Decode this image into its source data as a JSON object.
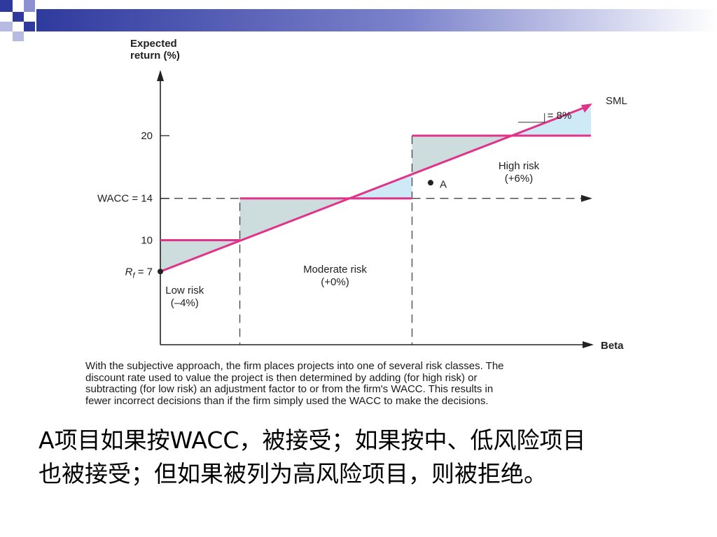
{
  "slide": {
    "header_band_colors": [
      "#2f3a9e",
      "#9aa0d8"
    ],
    "note_lines": [
      "A项目如果按WACC，被接受；如果按中、低风险项目",
      "也被接受；但如果被列为高风险项目，则被拒绝。"
    ]
  },
  "caption": {
    "lines": [
      "With the subjective approach, the firm places projects into one of several risk classes. The",
      "discount rate used to value the project is then determined by adding (for high risk) or",
      "subtracting (for low risk) an adjustment factor to or from the firm's WACC.  This results in",
      "fewer incorrect decisions than if the firm simply used the WACC to make the decisions."
    ]
  },
  "chart_data": {
    "type": "line",
    "ylabel": [
      "Expected",
      "return (%)"
    ],
    "xlabel": "Beta",
    "y_ticks": [
      {
        "value": 20,
        "label": "20"
      },
      {
        "value": 14,
        "label": "WACC = 14"
      },
      {
        "value": 10,
        "label": "10"
      }
    ],
    "rf": {
      "value": 7,
      "label_main": "R",
      "label_sub": "f",
      "label_rest": " = 7"
    },
    "sml": {
      "name": "SML",
      "x": [
        0,
        3.25
      ],
      "y": [
        7,
        23
      ]
    },
    "steps": [
      {
        "x": [
          0,
          0.6
        ],
        "y": 10
      },
      {
        "x": [
          0.6,
          1.9
        ],
        "y": 14
      },
      {
        "x": [
          1.9,
          3.25
        ],
        "y": 20
      }
    ],
    "wacc_line": 14,
    "class_boundaries": [
      0.6,
      1.9
    ],
    "regions": [
      {
        "name": "Low risk",
        "sub": "(–4%)"
      },
      {
        "name": "Moderate risk",
        "sub": "(+0%)"
      },
      {
        "name": "High risk",
        "sub": "(+6%)"
      }
    ],
    "project_a": {
      "label": "A",
      "x": 1.95,
      "y": 15.5
    },
    "annotation": "= 8%",
    "colors": {
      "sml": "#e0338a",
      "step": "#e0338a",
      "fill_below": "#cddcdc",
      "fill_above": "#cfeaf7",
      "axis": "#222222"
    }
  }
}
